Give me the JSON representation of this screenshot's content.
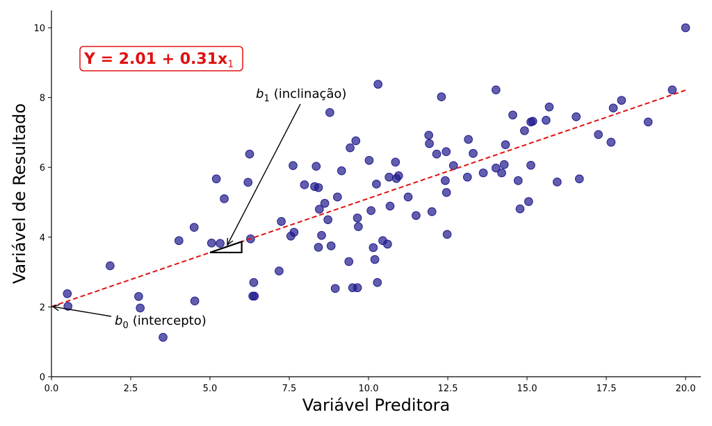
{
  "chart_data": {
    "type": "scatter",
    "xlabel": "Variável Preditora",
    "ylabel": "Variável de Resultado",
    "xlim": [
      0,
      20.5
    ],
    "ylim": [
      0,
      10.5
    ],
    "xticks": [
      "0.0",
      "2.5",
      "5.0",
      "7.5",
      "10.0",
      "12.5",
      "15.0",
      "17.5",
      "20.0"
    ],
    "yticks": [
      "0",
      "2",
      "4",
      "6",
      "8",
      "10"
    ],
    "grid": false,
    "point_color": "#1f1a8c",
    "line_color": "#e01010",
    "regression": {
      "intercept": 2.01,
      "slope": 0.31,
      "x_range": [
        0,
        20
      ]
    },
    "equation": {
      "main": "Y = 2.01 + 0.31x",
      "sub": "1"
    },
    "annotations": {
      "slope": {
        "symbol": "b",
        "sub": "1",
        "text": "(inclinação)"
      },
      "intercept": {
        "symbol": "b",
        "sub": "0",
        "text": "(intercepto)"
      }
    },
    "points": [
      [
        0.5,
        2.38
      ],
      [
        0.52,
        2.02
      ],
      [
        1.85,
        3.18
      ],
      [
        2.75,
        2.3
      ],
      [
        2.8,
        1.97
      ],
      [
        3.52,
        1.13
      ],
      [
        4.02,
        3.9
      ],
      [
        4.5,
        4.28
      ],
      [
        4.52,
        2.17
      ],
      [
        5.05,
        3.83
      ],
      [
        5.2,
        5.67
      ],
      [
        5.32,
        3.82
      ],
      [
        5.45,
        5.1
      ],
      [
        6.2,
        5.57
      ],
      [
        6.25,
        6.38
      ],
      [
        6.28,
        3.95
      ],
      [
        6.35,
        2.31
      ],
      [
        6.38,
        2.7
      ],
      [
        6.4,
        2.31
      ],
      [
        7.18,
        3.03
      ],
      [
        7.25,
        4.45
      ],
      [
        7.55,
        4.03
      ],
      [
        7.62,
        6.05
      ],
      [
        7.65,
        4.14
      ],
      [
        7.98,
        5.5
      ],
      [
        8.3,
        5.45
      ],
      [
        8.35,
        6.03
      ],
      [
        8.42,
        5.42
      ],
      [
        8.42,
        3.71
      ],
      [
        8.45,
        4.8
      ],
      [
        8.52,
        4.05
      ],
      [
        8.62,
        4.97
      ],
      [
        8.72,
        4.5
      ],
      [
        8.78,
        7.57
      ],
      [
        8.82,
        3.75
      ],
      [
        8.95,
        2.53
      ],
      [
        9.02,
        5.15
      ],
      [
        9.15,
        5.9
      ],
      [
        9.38,
        3.3
      ],
      [
        9.42,
        6.56
      ],
      [
        9.5,
        2.55
      ],
      [
        9.6,
        6.76
      ],
      [
        9.65,
        2.55
      ],
      [
        9.65,
        4.55
      ],
      [
        9.68,
        4.3
      ],
      [
        10.02,
        6.2
      ],
      [
        10.08,
        4.76
      ],
      [
        10.15,
        3.7
      ],
      [
        10.2,
        3.36
      ],
      [
        10.25,
        5.52
      ],
      [
        10.28,
        2.7
      ],
      [
        10.3,
        8.38
      ],
      [
        10.45,
        3.9
      ],
      [
        10.6,
        3.8
      ],
      [
        10.65,
        5.72
      ],
      [
        10.68,
        4.89
      ],
      [
        10.85,
        6.15
      ],
      [
        10.88,
        5.68
      ],
      [
        10.95,
        5.76
      ],
      [
        11.25,
        5.15
      ],
      [
        11.5,
        4.62
      ],
      [
        11.9,
        6.92
      ],
      [
        11.92,
        6.68
      ],
      [
        12.0,
        4.73
      ],
      [
        12.15,
        6.38
      ],
      [
        12.3,
        8.02
      ],
      [
        12.42,
        5.62
      ],
      [
        12.45,
        6.45
      ],
      [
        12.46,
        5.28
      ],
      [
        12.48,
        4.08
      ],
      [
        12.68,
        6.05
      ],
      [
        13.12,
        5.72
      ],
      [
        13.15,
        6.8
      ],
      [
        13.3,
        6.4
      ],
      [
        13.62,
        5.84
      ],
      [
        14.02,
        5.98
      ],
      [
        14.02,
        8.22
      ],
      [
        14.2,
        5.84
      ],
      [
        14.28,
        6.08
      ],
      [
        14.32,
        6.65
      ],
      [
        14.55,
        7.5
      ],
      [
        14.72,
        5.62
      ],
      [
        14.78,
        4.81
      ],
      [
        14.92,
        7.05
      ],
      [
        15.05,
        5.02
      ],
      [
        15.12,
        6.06
      ],
      [
        15.12,
        7.3
      ],
      [
        15.18,
        7.32
      ],
      [
        15.6,
        7.35
      ],
      [
        15.7,
        7.73
      ],
      [
        15.95,
        5.58
      ],
      [
        16.55,
        7.45
      ],
      [
        16.65,
        5.67
      ],
      [
        17.25,
        6.94
      ],
      [
        17.65,
        6.72
      ],
      [
        17.72,
        7.7
      ],
      [
        17.98,
        7.92
      ],
      [
        18.82,
        7.3
      ],
      [
        19.58,
        8.22
      ],
      [
        20.0,
        10.0
      ]
    ]
  }
}
